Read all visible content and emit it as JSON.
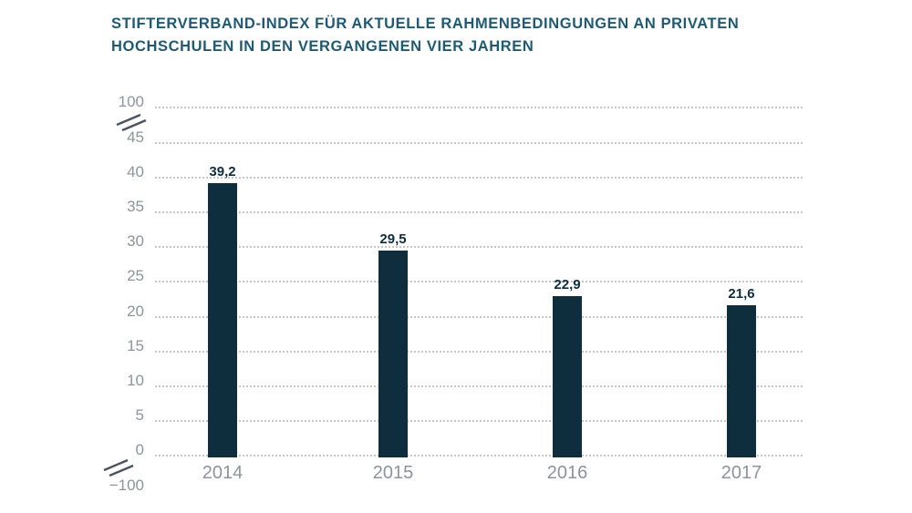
{
  "chart": {
    "title_line1": "STIFTERVERBAND-INDEX FÜR AKTUELLE RAHMENBEDINGUNGEN AN PRIVATEN",
    "title_line2": "HOCHSCHULEN IN DEN VERGANGENEN VIER JAHREN"
  },
  "chart_data": {
    "type": "bar",
    "title": "STIFTERVERBAND-INDEX FÜR AKTUELLE RAHMENBEDINGUNGEN AN PRIVATEN HOCHSCHULEN IN DEN VERGANGENEN VIER JAHREN",
    "categories": [
      "2014",
      "2015",
      "2016",
      "2017"
    ],
    "values": [
      39.2,
      29.5,
      22.9,
      21.6
    ],
    "value_labels": [
      "39,2",
      "29,5",
      "22,9",
      "21,6"
    ],
    "xlabel": "",
    "ylabel": "",
    "y_tick_labels": [
      "100",
      "45",
      "40",
      "35",
      "30",
      "25",
      "20",
      "15",
      "10",
      "5",
      "0",
      "−100"
    ],
    "y_tick_values": [
      100,
      45,
      40,
      35,
      30,
      25,
      20,
      15,
      10,
      5,
      0,
      -100
    ],
    "ylim_display": [
      0,
      45
    ],
    "axis_breaks": "between 45 and 100 (top), between 0 and −100 (bottom)",
    "grid": "horizontal dotted",
    "legend_position": "none",
    "colors": {
      "bar": "#0e2e3e",
      "title": "#1d5a76",
      "axis_label": "#8b959c",
      "value_label": "#0e2e3e",
      "gridline": "#c6c6c6",
      "break_mark": "#4a545e",
      "background": "#ffffff"
    }
  }
}
